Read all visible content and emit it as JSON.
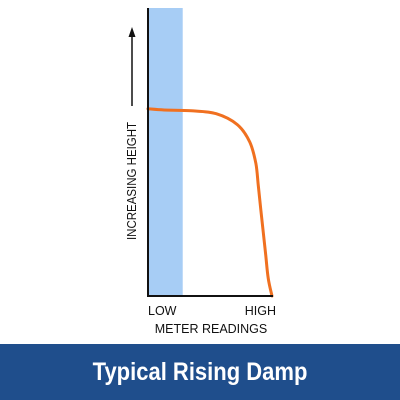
{
  "banner": {
    "title": "Typical Rising Damp",
    "background_color": "#1f4e8c",
    "text_color": "#ffffff"
  },
  "chart_data": {
    "type": "line",
    "title": "Typical Rising Damp",
    "xlabel": "METER READINGS",
    "ylabel": "INCREASING HEIGHT",
    "x_tick_labels": [
      "LOW",
      "HIGH"
    ],
    "xlim": [
      0,
      100
    ],
    "ylim": [
      0,
      100
    ],
    "grid": false,
    "legend": "none",
    "y_axis_arrow": true,
    "shaded_band": {
      "description": "low meter reading zone",
      "x_range": [
        0,
        28
      ],
      "color": "#a7cdf5"
    },
    "series": [
      {
        "color": "#f07020",
        "x": [
          0,
          13,
          35,
          55,
          72,
          82,
          87,
          89,
          91,
          93,
          95,
          97,
          100
        ],
        "y": [
          65,
          64.6,
          64.3,
          63.3,
          59.5,
          53.5,
          46,
          38,
          30,
          22,
          14,
          6,
          0
        ]
      }
    ]
  }
}
